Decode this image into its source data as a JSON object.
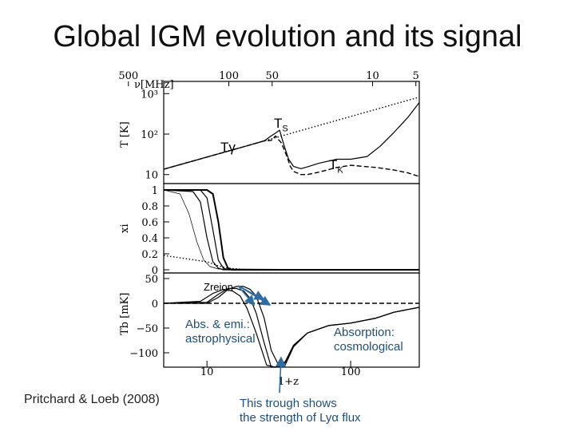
{
  "slide": {
    "title": "Global IGM evolution and its signal",
    "citation": "Pritchard & Loeb (2008)"
  },
  "annotations": {
    "ts": "T",
    "ts_sub": "S",
    "tk": "T",
    "tk_sub": "K",
    "tgamma": "Tγ",
    "zreion": "Zreion",
    "abs_emi_line1": "Abs. & emi.:",
    "abs_emi_line2": "astrophysical",
    "absorption_line1": "Absorption:",
    "absorption_line2": "cosmological",
    "trough_line1": "This trough shows",
    "trough_line2": "the strength of Lyα flux"
  },
  "colors": {
    "annotation_blue": "#1f4e79",
    "arrow_blue": "#2e6da4"
  },
  "chart_data": [
    {
      "type": "line",
      "panel": "temperature",
      "ylabel": "T [K]",
      "top_axis_label": "ν[MHz]",
      "top_ticks": [
        "500",
        "100",
        "50",
        "10",
        "5"
      ],
      "y_scale": "log",
      "yticks": [
        "10³",
        "10²",
        "10"
      ],
      "ylim": [
        6,
        2000
      ],
      "xlim": [
        5,
        300
      ],
      "series": [
        {
          "name": "Tγ",
          "style": "dotted",
          "x": [
            5,
            300
          ],
          "y": [
            13.6,
            818
          ]
        },
        {
          "name": "TS",
          "style": "solid",
          "x": [
            5,
            20,
            25,
            28,
            30,
            32,
            34,
            37,
            40,
            45,
            50,
            60,
            80,
            100,
            130,
            160,
            200,
            250,
            300
          ],
          "y": [
            13.6,
            54,
            68,
            90,
            106,
            125,
            60,
            24,
            16,
            14,
            15.5,
            19,
            24,
            24,
            28,
            50,
            110,
            260,
            600
          ]
        },
        {
          "name": "TK",
          "style": "dashed",
          "x": [
            5,
            20,
            25,
            28,
            30,
            33,
            36,
            38,
            40,
            45,
            50,
            60,
            80,
            100,
            150,
            200,
            250,
            300
          ],
          "y": [
            13.6,
            54,
            68,
            70,
            90,
            60,
            28,
            16,
            12,
            10,
            10,
            11.5,
            15,
            17,
            15,
            13,
            11,
            9
          ]
        }
      ]
    },
    {
      "type": "line",
      "panel": "ionized fraction",
      "ylabel": "xi",
      "yticks": [
        "1",
        "0.8",
        "0.6",
        "0.4",
        "0.2",
        "0"
      ],
      "ylim": [
        0,
        1
      ],
      "series": [
        {
          "style": "solid-thick",
          "x": [
            5,
            10,
            11,
            12,
            13,
            14,
            15,
            300
          ],
          "y": [
            1,
            1,
            0.95,
            0.6,
            0.15,
            0.02,
            0,
            0
          ]
        },
        {
          "style": "solid",
          "x": [
            5,
            9,
            10,
            11,
            12,
            13,
            14,
            300
          ],
          "y": [
            1,
            1,
            0.9,
            0.5,
            0.12,
            0.02,
            0,
            0
          ]
        },
        {
          "style": "solid",
          "x": [
            5,
            8,
            9,
            10,
            11,
            12,
            13,
            300
          ],
          "y": [
            1,
            0.98,
            0.85,
            0.4,
            0.1,
            0.02,
            0,
            0
          ]
        },
        {
          "style": "solid-thin",
          "x": [
            5,
            6.5,
            7.5,
            8.5,
            9.5,
            10.5,
            12,
            300
          ],
          "y": [
            1,
            0.95,
            0.7,
            0.35,
            0.12,
            0.04,
            0.01,
            0
          ]
        },
        {
          "style": "dotted",
          "x": [
            5,
            10,
            12,
            14,
            18,
            30,
            300
          ],
          "y": [
            0.18,
            0.1,
            0.05,
            0.02,
            0.005,
            0.001,
            0
          ]
        }
      ]
    },
    {
      "type": "line",
      "panel": "brightness temperature",
      "ylabel": "Tb [mK]",
      "xlabel": "1+z",
      "x_scale": "log",
      "xticks": [
        "10",
        "100"
      ],
      "yticks": [
        "50",
        "0",
        "−50",
        "−100"
      ],
      "ylim": [
        -130,
        50
      ],
      "xlim": [
        5,
        300
      ],
      "series": [
        {
          "style": "dashed",
          "x": [
            5,
            300
          ],
          "y": [
            0,
            0
          ]
        },
        {
          "style": "solid",
          "x": [
            5,
            10,
            12,
            14,
            16,
            18,
            20,
            22,
            25,
            28,
            32,
            35,
            40,
            50,
            70,
            100,
            150,
            200,
            300
          ],
          "y": [
            0,
            0,
            12,
            28,
            34,
            34,
            28,
            15,
            -30,
            -95,
            -145,
            -120,
            -85,
            -60,
            -45,
            -40,
            -30,
            -18,
            -8
          ]
        },
        {
          "style": "solid",
          "x": [
            5,
            10,
            12,
            14,
            16,
            18,
            20,
            22,
            25,
            28,
            30,
            35,
            40,
            50,
            70,
            100,
            150,
            200,
            300
          ],
          "y": [
            0,
            2,
            18,
            30,
            30,
            25,
            10,
            -20,
            -80,
            -135,
            -150,
            -125,
            -88,
            -60,
            -45,
            -40,
            -30,
            -18,
            -8
          ]
        },
        {
          "style": "solid",
          "x": [
            5,
            9,
            11,
            13,
            15,
            17,
            19,
            22,
            26,
            30,
            35,
            40,
            50,
            70,
            100,
            150,
            200,
            300
          ],
          "y": [
            0,
            4,
            20,
            28,
            25,
            15,
            -10,
            -60,
            -125,
            -145,
            -118,
            -85,
            -60,
            -45,
            -40,
            -30,
            -18,
            -8
          ]
        }
      ]
    }
  ]
}
